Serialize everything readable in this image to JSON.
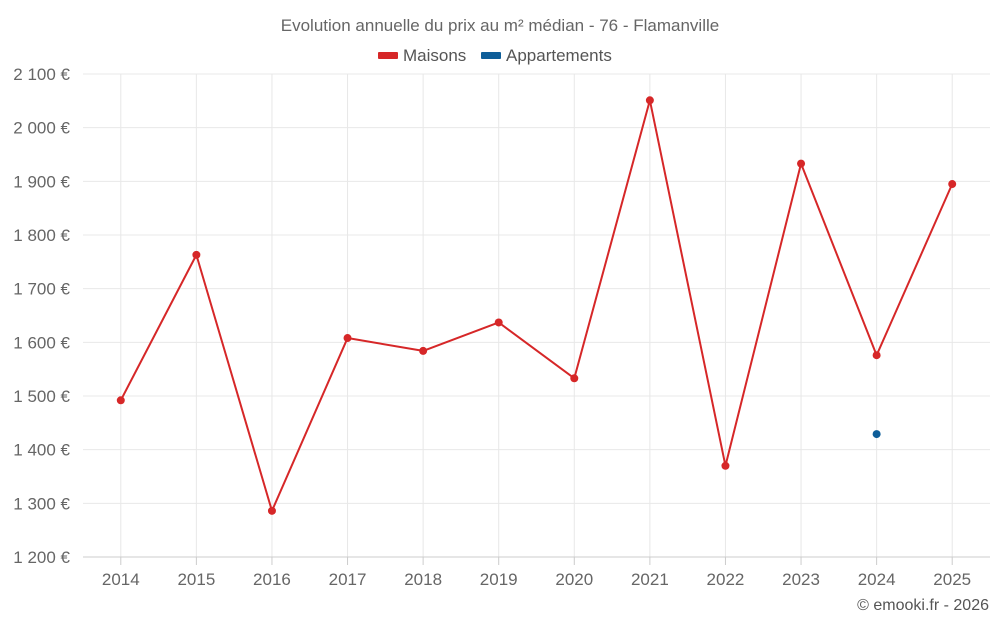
{
  "chart_data": {
    "type": "line",
    "title": "Evolution annuelle du prix au m² médian - 76 - Flamanville",
    "categories": [
      "2014",
      "2015",
      "2016",
      "2017",
      "2018",
      "2019",
      "2020",
      "2021",
      "2022",
      "2023",
      "2024",
      "2025"
    ],
    "series": [
      {
        "name": "Maisons",
        "color": "#d62728",
        "values": [
          1492,
          1763,
          1286,
          1608,
          1584,
          1637,
          1533,
          2051,
          1370,
          1933,
          1576,
          1895
        ]
      },
      {
        "name": "Appartements",
        "color": "#0e5e99",
        "values": [
          null,
          null,
          null,
          null,
          null,
          null,
          null,
          null,
          null,
          null,
          1429,
          null
        ]
      }
    ],
    "yticks": [
      1200,
      1300,
      1400,
      1500,
      1600,
      1700,
      1800,
      1900,
      2000,
      2100
    ],
    "ytick_labels": [
      "1 200 €",
      "1 300 €",
      "1 400 €",
      "1 500 €",
      "1 600 €",
      "1 700 €",
      "1 800 €",
      "1 900 €",
      "2 000 €",
      "2 100 €"
    ],
    "ylim": [
      1200,
      2100
    ],
    "xlabel": "",
    "ylabel": "",
    "grid": true,
    "legend_position": "top-center"
  },
  "credit": "© emooki.fr - 2026"
}
